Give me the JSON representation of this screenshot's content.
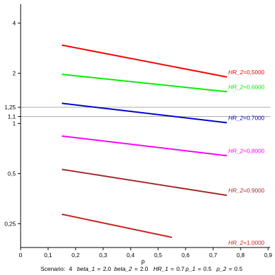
{
  "chart_data": {
    "type": "line",
    "xlabel": "ρ",
    "xlim": [
      0,
      0.9
    ],
    "x_ticks": [
      0,
      0.1,
      0.2,
      0.3,
      0.4,
      0.5,
      0.6,
      0.7,
      0.8,
      0.9
    ],
    "x_tick_labels": [
      "0",
      "0,1",
      "0,2",
      "0,3",
      "0,4",
      "0,5",
      "0,6",
      "0,7",
      "0,8",
      "0,9"
    ],
    "y_scale": "log",
    "ylim": [
      0.18,
      5.2
    ],
    "y_ticks": [
      0.25,
      0.5,
      1,
      1.1,
      1.25,
      2,
      4
    ],
    "y_tick_labels": [
      "0,25",
      "0,5",
      "1",
      "1,1",
      "1,25",
      "2",
      "4"
    ],
    "reference_lines": [
      1.1,
      1.25
    ],
    "reference_color": "#aaaaaa",
    "series": [
      {
        "name": "HR_2",
        "value_label": "0.5000",
        "color": "#ff0000",
        "x": [
          0.15,
          0.75
        ],
        "y": [
          2.95,
          1.9
        ]
      },
      {
        "name": "HR_2",
        "value_label": "0.6000",
        "color": "#00ee00",
        "x": [
          0.15,
          0.75
        ],
        "y": [
          1.97,
          1.55
        ]
      },
      {
        "name": "HR_2",
        "value_label": "0.7000",
        "color": "#0000cc",
        "x": [
          0.15,
          0.75
        ],
        "y": [
          1.32,
          1.01
        ]
      },
      {
        "name": "HR_2",
        "value_label": "0.8000",
        "color": "#ff00ff",
        "x": [
          0.15,
          0.75
        ],
        "y": [
          0.84,
          0.64
        ]
      },
      {
        "name": "HR_2",
        "value_label": "0.9000",
        "color": "#a52a2a",
        "x": [
          0.15,
          0.75
        ],
        "y": [
          0.53,
          0.37
        ]
      },
      {
        "name": "HR_2",
        "value_label": "1.0000",
        "color": "#cc2222",
        "x": [
          0.15,
          0.55
        ],
        "y": [
          0.285,
          0.207
        ]
      }
    ]
  },
  "scenario": {
    "scenario_label": "Scenario:",
    "scenario_value": "4",
    "beta1_label": "beta_1",
    "beta1_value": "2.0",
    "beta2_label": "beta_2",
    "beta2_value": "2.0",
    "hr1_label": "HR_1",
    "hr1_value": "0.7",
    "p1_label": "p_1",
    "p1_value": "0.5",
    "p2_label": "p_2",
    "p2_value": "0.5"
  }
}
